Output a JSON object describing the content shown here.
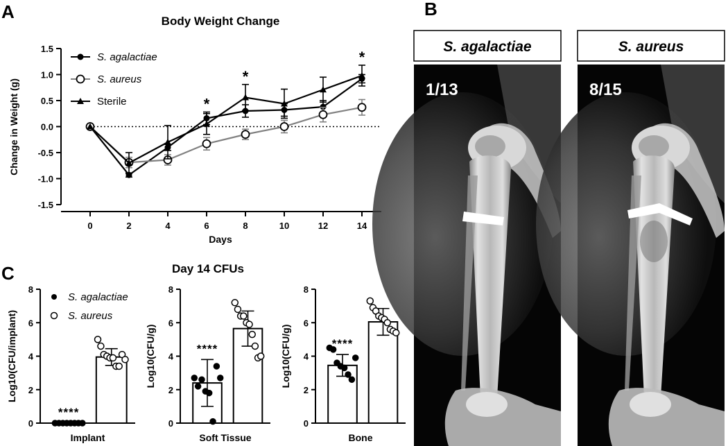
{
  "panels": {
    "a": "A",
    "b": "B",
    "c": "C"
  },
  "chart_data": [
    {
      "type": "line",
      "title": "Body Weight Change",
      "xlabel": "Days",
      "ylabel": "Change in Weight (g)",
      "x": [
        0,
        2,
        4,
        6,
        8,
        10,
        12,
        14
      ],
      "xticks": [
        "0",
        "2",
        "4",
        "6",
        "8",
        "10",
        "12",
        "14"
      ],
      "xlim": [
        -1.5,
        15
      ],
      "ylim": [
        -1.5,
        1.5
      ],
      "yticks": [
        "1.5",
        "1.0",
        "0.5",
        "0.0",
        "-0.5",
        "-1.0",
        "-1.5"
      ],
      "reference_line": 0,
      "legend_position": "top-left",
      "significance": [
        {
          "x": 6,
          "label": "*"
        },
        {
          "x": 8,
          "label": "*"
        },
        {
          "x": 14,
          "label": "*"
        }
      ],
      "series": [
        {
          "name": "S. agalactiae",
          "marker": "filled-circle",
          "color": "#000000",
          "values": [
            0,
            -0.93,
            -0.4,
            0.16,
            0.3,
            0.32,
            0.38,
            0.92
          ],
          "errors": [
            0,
            0.04,
            0.06,
            0.12,
            0.12,
            0.12,
            0.12,
            0.08
          ]
        },
        {
          "name": "S. aureus",
          "marker": "open-circle",
          "color": "#808080",
          "values": [
            0,
            -0.69,
            -0.64,
            -0.33,
            -0.15,
            0.0,
            0.23,
            0.37
          ],
          "errors": [
            0,
            0.1,
            0.1,
            0.12,
            0.1,
            0.12,
            0.14,
            0.15
          ]
        },
        {
          "name": "Sterile",
          "marker": "triangle",
          "color": "#000000",
          "values": [
            0,
            -0.7,
            -0.3,
            0.05,
            0.56,
            0.44,
            0.71,
            0.98
          ],
          "errors": [
            0,
            0.2,
            0.32,
            0.2,
            0.25,
            0.28,
            0.24,
            0.2
          ]
        }
      ]
    },
    {
      "type": "bar",
      "title": "Day 14 CFUs",
      "categories": [
        "Implant"
      ],
      "ylabel": "Log10(CFU/implant)",
      "ylim": [
        0,
        8
      ],
      "yticks": [
        "0",
        "2",
        "4",
        "6",
        "8"
      ],
      "legend_position": "top-left",
      "legend": [
        "S. agalactiae",
        "S. aureus"
      ],
      "significance_label": "****",
      "series": [
        {
          "name": "S. agalactiae",
          "mean": 0.0,
          "sd": 0.0,
          "points": [
            0,
            0,
            0,
            0,
            0,
            0,
            0,
            0
          ]
        },
        {
          "name": "S. aureus",
          "mean": 3.95,
          "sd": 0.5,
          "points": [
            5.0,
            4.6,
            4.1,
            4.0,
            3.9,
            3.9,
            3.4,
            3.4,
            4.1,
            3.8
          ]
        }
      ]
    },
    {
      "type": "bar",
      "categories": [
        "Soft Tissue"
      ],
      "ylabel": "Log10(CFU/g)",
      "ylim": [
        0,
        8
      ],
      "yticks": [
        "0",
        "2",
        "4",
        "6",
        "8"
      ],
      "significance_label": "****",
      "series": [
        {
          "name": "S. agalactiae",
          "mean": 2.4,
          "sd": 1.4,
          "points": [
            2.7,
            2.2,
            2.6,
            1.9,
            1.8,
            0.1,
            3.4,
            2.7
          ]
        },
        {
          "name": "S. aureus",
          "mean": 5.65,
          "sd": 1.05,
          "points": [
            7.2,
            6.8,
            6.4,
            6.4,
            6.0,
            5.9,
            5.3,
            4.6,
            3.9,
            4.0
          ]
        }
      ]
    },
    {
      "type": "bar",
      "categories": [
        "Bone"
      ],
      "ylabel": "Log10(CFU/g)",
      "ylim": [
        0,
        8
      ],
      "yticks": [
        "0",
        "2",
        "4",
        "6",
        "8"
      ],
      "significance_label": "****",
      "series": [
        {
          "name": "S. agalactiae",
          "mean": 3.45,
          "sd": 0.65,
          "points": [
            4.5,
            4.4,
            3.6,
            3.4,
            3.3,
            2.9,
            2.6,
            3.9
          ]
        },
        {
          "name": "S. aureus",
          "mean": 6.05,
          "sd": 0.8,
          "points": [
            7.3,
            6.9,
            6.7,
            6.4,
            6.3,
            6.2,
            6.0,
            5.6,
            5.5,
            5.4
          ]
        }
      ]
    }
  ],
  "xray": {
    "images": [
      {
        "label": "S. agalactiae",
        "count": "1/13"
      },
      {
        "label": "S. aureus",
        "count": "8/15"
      }
    ]
  }
}
